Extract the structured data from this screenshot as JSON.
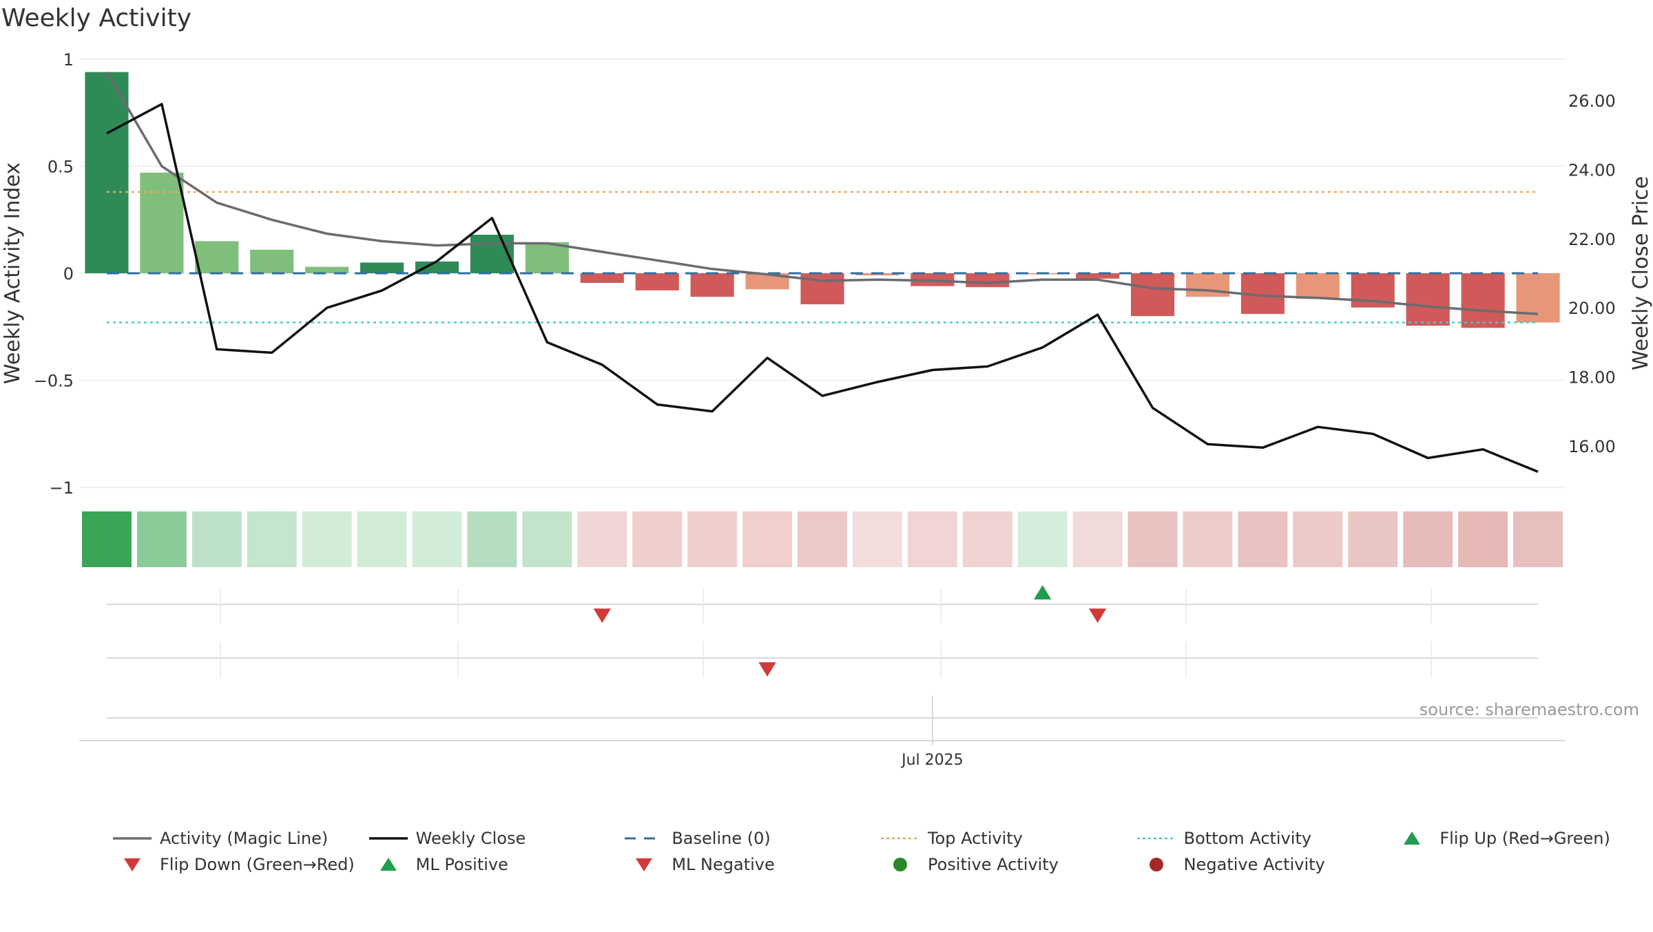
{
  "title": "Weekly Activity",
  "source_note": "source: sharemaestro.com",
  "colors": {
    "pos_strong": "#2e8b57",
    "pos_light": "#7fbf7b",
    "neg_strong": "#d05a5a",
    "neg_light": "#e8967a",
    "magic_line": "#6b6b70",
    "weekly_close": "#111111",
    "baseline": "#2f6f9f",
    "top_activity": "#f2a65a",
    "bottom_activity": "#40cfd0",
    "flip_up": "#1f9e50",
    "flip_down": "#d23a3a",
    "positive_activity": "#2a8a2a",
    "negative_activity": "#a52828"
  },
  "chart_data": {
    "type": "bar",
    "title": "Weekly Activity",
    "ylabel_left": "Weekly Activity Index",
    "ylabel_right": "Weekly Close Price",
    "ylim_left": [
      -1,
      1
    ],
    "ylim_right": [
      14.8,
      27.2
    ],
    "yticks_left": [
      "1",
      "0.5",
      "0",
      "−0.5",
      "−1"
    ],
    "yticks_left_values": [
      1,
      0.5,
      0,
      -0.5,
      -1
    ],
    "yticks_right": [
      "26.00",
      "24.00",
      "22.00",
      "20.00",
      "18.00",
      "16.00"
    ],
    "yticks_right_values": [
      26,
      24,
      22,
      20,
      18,
      16
    ],
    "xtick_label": "Jul 2025",
    "xtick_week_index": 15.5,
    "weeks": 27,
    "activity": [
      0.94,
      0.47,
      0.15,
      0.11,
      0.03,
      0.05,
      0.055,
      0.18,
      0.145,
      -0.045,
      -0.08,
      -0.11,
      -0.075,
      -0.145,
      -0.01,
      -0.06,
      -0.065,
      -0.005,
      -0.025,
      -0.2,
      -0.11,
      -0.19,
      -0.12,
      -0.16,
      -0.245,
      -0.255,
      -0.23
    ],
    "bar_shade": [
      "strong",
      "light",
      "light",
      "light",
      "light",
      "strong",
      "strong",
      "strong",
      "light",
      "strong",
      "strong",
      "strong",
      "light",
      "strong",
      "light",
      "strong",
      "strong",
      "light",
      "strong",
      "strong",
      "light",
      "strong",
      "light",
      "strong",
      "strong",
      "strong",
      "light"
    ],
    "magic_line": [
      0.94,
      0.5,
      0.33,
      0.25,
      0.185,
      0.15,
      0.13,
      0.14,
      0.14,
      0.1,
      0.06,
      0.02,
      -0.005,
      -0.035,
      -0.03,
      -0.035,
      -0.045,
      -0.03,
      -0.03,
      -0.07,
      -0.08,
      -0.105,
      -0.115,
      -0.13,
      -0.155,
      -0.175,
      -0.19
    ],
    "weekly_close": [
      25.05,
      25.9,
      18.8,
      18.7,
      20.0,
      20.5,
      21.35,
      22.6,
      19.0,
      18.35,
      17.2,
      17.0,
      18.55,
      17.45,
      17.85,
      18.2,
      18.3,
      18.85,
      19.8,
      17.1,
      16.05,
      15.95,
      16.55,
      16.35,
      15.65,
      15.9,
      15.25
    ],
    "top_activity": 0.38,
    "bottom_activity": -0.23,
    "baseline": 0,
    "heat_strip": [
      "#3aa655",
      "#8acb99",
      "#bde2c7",
      "#c3e6cc",
      "#d2ecd8",
      "#d2ecd8",
      "#d2ecd8",
      "#b4debf",
      "#c1e4ca",
      "#f0d7d6",
      "#efcfcd",
      "#efcfcd",
      "#efd0cf",
      "#ecc8c6",
      "#f2dcdc",
      "#f0d5d4",
      "#efd2d1",
      "#d4eedb",
      "#f1dada",
      "#e8c3c0",
      "#ecccca",
      "#e8c3c1",
      "#ebcac8",
      "#e9c6c3",
      "#e6bbb9",
      "#e6b8b6",
      "#e7bfbc"
    ],
    "flip_up_weeks": [
      17
    ],
    "flip_down_weeks": [
      9,
      18
    ],
    "ml_negative_weeks": [
      12
    ]
  },
  "legend": [
    {
      "label": "Activity (Magic Line)",
      "style": "line",
      "color": "#6b6b70"
    },
    {
      "label": "Weekly Close",
      "style": "line",
      "color": "#111111"
    },
    {
      "label": "Baseline (0)",
      "style": "dash",
      "color": "#2f6f9f"
    },
    {
      "label": "Top Activity",
      "style": "dot",
      "color": "#f2a65a"
    },
    {
      "label": "Bottom Activity",
      "style": "dot",
      "color": "#40cfd0"
    },
    {
      "label": "Flip Up (Red→Green)",
      "style": "tri-up",
      "color": "#1f9e50"
    },
    {
      "label": "Flip Down (Green→Red)",
      "style": "tri-down",
      "color": "#d23a3a"
    },
    {
      "label": "ML Positive",
      "style": "tri-up",
      "color": "#1f9e50"
    },
    {
      "label": "ML Negative",
      "style": "tri-down",
      "color": "#d23a3a"
    },
    {
      "label": "Positive Activity",
      "style": "circle",
      "color": "#2a8a2a"
    },
    {
      "label": "Negative Activity",
      "style": "circle",
      "color": "#a52828"
    }
  ]
}
